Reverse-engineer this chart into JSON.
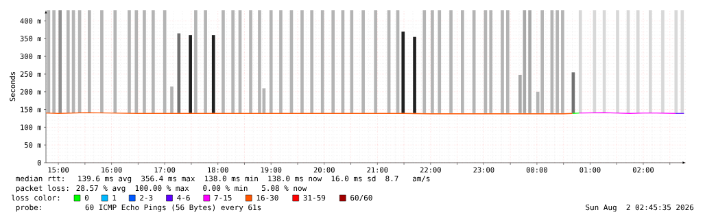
{
  "chart_data": {
    "type": "line",
    "ylabel": "Seconds",
    "xlim": [
      "2026-08-01T14:46",
      "2026-08-02T02:48"
    ],
    "ylim": [
      0,
      430
    ],
    "xticks": [
      {
        "value": "2026-08-01T15:00",
        "label": "15:00"
      },
      {
        "value": "2026-08-01T15:30",
        "label": null
      },
      {
        "value": "2026-08-01T16:00",
        "label": "16:00"
      },
      {
        "value": "2026-08-01T16:30",
        "label": null
      },
      {
        "value": "2026-08-01T17:00",
        "label": "17:00"
      },
      {
        "value": "2026-08-01T17:30",
        "label": null
      },
      {
        "value": "2026-08-01T18:00",
        "label": "18:00"
      },
      {
        "value": "2026-08-01T18:30",
        "label": null
      },
      {
        "value": "2026-08-01T19:00",
        "label": "19:00"
      },
      {
        "value": "2026-08-01T19:30",
        "label": null
      },
      {
        "value": "2026-08-01T20:00",
        "label": "20:00"
      },
      {
        "value": "2026-08-01T20:30",
        "label": null
      },
      {
        "value": "2026-08-01T21:00",
        "label": "21:00"
      },
      {
        "value": "2026-08-01T21:30",
        "label": null
      },
      {
        "value": "2026-08-01T22:00",
        "label": "22:00"
      },
      {
        "value": "2026-08-01T22:30",
        "label": null
      },
      {
        "value": "2026-08-01T23:00",
        "label": "23:00"
      },
      {
        "value": "2026-08-01T23:30",
        "label": null
      },
      {
        "value": "2026-08-02T00:00",
        "label": "00:00"
      },
      {
        "value": "2026-08-02T00:30",
        "label": null
      },
      {
        "value": "2026-08-02T01:00",
        "label": "01:00"
      },
      {
        "value": "2026-08-02T01:30",
        "label": null
      },
      {
        "value": "2026-08-02T02:00",
        "label": "02:00"
      },
      {
        "value": "2026-08-02T02:30",
        "label": null
      }
    ],
    "yticks": [
      0,
      {
        "value": 50,
        "label": "50 m"
      },
      {
        "value": 100,
        "label": "100 m"
      },
      {
        "value": 150,
        "label": "150 m"
      },
      {
        "value": 200,
        "label": "200 m"
      },
      {
        "value": 250,
        "label": "250 m"
      },
      {
        "value": 300,
        "label": "300 m"
      },
      {
        "value": 350,
        "label": "350 m"
      },
      {
        "value": 400,
        "label": "400 m"
      }
    ],
    "grid": true,
    "legend": "bottom",
    "legend_title": "loss color:",
    "series": [
      {
        "type": "bar",
        "x": [
          "2026-08-01T14:49",
          "2026-08-01T14:55",
          "2026-08-01T15:02",
          "2026-08-01T15:11",
          "2026-08-01T15:17",
          "2026-08-01T15:24",
          "2026-08-01T15:35",
          "2026-08-01T15:49",
          "2026-08-01T16:04",
          "2026-08-01T16:20",
          "2026-08-01T16:28",
          "2026-08-01T16:37",
          "2026-08-01T16:47",
          "2026-08-01T17:00",
          "2026-08-01T17:08",
          "2026-08-01T17:16",
          "2026-08-01T17:29",
          "2026-08-01T17:35",
          "2026-08-01T17:46",
          "2026-08-01T17:55",
          "2026-08-01T18:06",
          "2026-08-01T18:17",
          "2026-08-01T18:25",
          "2026-08-01T18:37",
          "2026-08-01T18:47",
          "2026-08-01T18:52",
          "2026-08-01T19:00",
          "2026-08-01T19:11",
          "2026-08-01T19:23",
          "2026-08-01T19:35",
          "2026-08-01T19:46",
          "2026-08-01T19:58",
          "2026-08-01T20:10",
          "2026-08-01T20:21",
          "2026-08-01T20:31",
          "2026-08-01T20:44",
          "2026-08-01T20:58",
          "2026-08-01T21:13",
          "2026-08-01T21:23",
          "2026-08-01T21:29",
          "2026-08-01T21:42",
          "2026-08-01T21:53",
          "2026-08-01T22:02",
          "2026-08-01T22:10",
          "2026-08-01T22:23",
          "2026-08-01T22:36",
          "2026-08-01T22:49",
          "2026-08-01T23:02",
          "2026-08-01T23:08",
          "2026-08-01T23:21",
          "2026-08-01T23:27",
          "2026-08-01T23:41",
          "2026-08-01T23:46",
          "2026-08-01T23:52",
          "2026-08-02T00:01",
          "2026-08-02T00:06",
          "2026-08-02T00:17",
          "2026-08-02T00:23",
          "2026-08-02T00:29",
          "2026-08-02T00:41",
          "2026-08-02T00:49",
          "2026-08-02T01:05",
          "2026-08-02T01:16",
          "2026-08-02T01:31",
          "2026-08-02T01:43",
          "2026-08-02T01:54",
          "2026-08-02T02:08",
          "2026-08-02T02:22",
          "2026-08-02T02:37",
          "2026-08-02T02:44"
        ],
        "base": [
          140,
          140,
          140,
          140,
          140,
          140,
          140,
          140,
          140,
          140,
          140,
          140,
          140,
          140,
          140,
          140,
          140,
          140,
          140,
          140,
          140,
          140,
          140,
          140,
          140,
          140,
          140,
          140,
          140,
          140,
          140,
          140,
          140,
          140,
          140,
          140,
          140,
          140,
          140,
          140,
          140,
          140,
          140,
          140,
          140,
          140,
          140,
          140,
          140,
          140,
          140,
          140,
          140,
          140,
          140,
          140,
          140,
          140,
          140,
          140,
          140,
          140,
          140,
          140,
          140,
          140,
          140,
          140,
          140,
          140
        ],
        "values": [
          290,
          290,
          290,
          290,
          290,
          290,
          290,
          290,
          290,
          290,
          290,
          290,
          290,
          290,
          75,
          225,
          220,
          290,
          290,
          220,
          290,
          290,
          290,
          290,
          290,
          70,
          290,
          290,
          290,
          290,
          290,
          290,
          290,
          290,
          290,
          290,
          290,
          290,
          290,
          230,
          215,
          290,
          290,
          290,
          290,
          290,
          290,
          290,
          290,
          290,
          290,
          108,
          290,
          290,
          60,
          290,
          290,
          290,
          290,
          115,
          290,
          290,
          290,
          290,
          290,
          290,
          290,
          290,
          290,
          290
        ],
        "colors": [
          "#b4b4b4",
          "#b4b4b4",
          "#909090",
          "#b4b4b4",
          "#b4b4b4",
          "#b4b4b4",
          "#b4b4b4",
          "#b4b4b4",
          "#b4b4b4",
          "#b4b4b4",
          "#b4b4b4",
          "#b4b4b4",
          "#b4b4b4",
          "#b4b4b4",
          "#b4b4b4",
          "#707070",
          "#202020",
          "#b4b4b4",
          "#b4b4b4",
          "#202020",
          "#b4b4b4",
          "#b4b4b4",
          "#b4b4b4",
          "#b4b4b4",
          "#b4b4b4",
          "#b4b4b4",
          "#b4b4b4",
          "#b4b4b4",
          "#b4b4b4",
          "#b4b4b4",
          "#b4b4b4",
          "#b4b4b4",
          "#b4b4b4",
          "#b4b4b4",
          "#b4b4b4",
          "#b4b4b4",
          "#b4b4b4",
          "#b4b4b4",
          "#b4b4b4",
          "#202020",
          "#202020",
          "#b4b4b4",
          "#b4b4b4",
          "#b4b4b4",
          "#b4b4b4",
          "#b4b4b4",
          "#b4b4b4",
          "#b4b4b4",
          "#b4b4b4",
          "#b4b4b4",
          "#b4b4b4",
          "#a8a8a8",
          "#a8a8a8",
          "#a8a8a8",
          "#b4b4b4",
          "#b4b4b4",
          "#b4b4b4",
          "#b4b4b4",
          "#b4b4b4",
          "#707070",
          "#d8d8d8",
          "#d8d8d8",
          "#d8d8d8",
          "#d8d8d8",
          "#d8d8d8",
          "#d8d8d8",
          "#d8d8d8",
          "#d8d8d8",
          "#d8d8d8",
          "#d8d8d8"
        ]
      },
      {
        "name": "0",
        "color": "#00ff00",
        "x": [
          "2026-08-02T00:40",
          "2026-08-02T00:48"
        ],
        "values": [
          139,
          140
        ]
      },
      {
        "name": "1",
        "color": "#00b8ff"
      },
      {
        "name": "2-3",
        "color": "#0059ff"
      },
      {
        "name": "4-6",
        "color": "#5e00ff",
        "x": [
          "2026-08-02T02:36",
          "2026-08-02T02:46"
        ],
        "values": [
          139,
          139
        ]
      },
      {
        "name": "7-15",
        "color": "#ff00ff",
        "x": [
          "2026-08-02T00:48",
          "2026-08-02T01:15",
          "2026-08-02T01:30",
          "2026-08-02T01:45",
          "2026-08-02T02:00",
          "2026-08-02T02:15",
          "2026-08-02T02:36"
        ],
        "values": [
          140,
          141,
          140,
          139,
          140,
          140,
          139
        ]
      },
      {
        "name": "16-30",
        "color": "#ff5500",
        "x": [
          "2026-08-01T14:46",
          "2026-08-01T15:00",
          "2026-08-01T15:30",
          "2026-08-01T16:00",
          "2026-08-01T16:30",
          "2026-08-01T17:00",
          "2026-08-01T17:30",
          "2026-08-01T18:00",
          "2026-08-01T18:30",
          "2026-08-01T19:00",
          "2026-08-01T19:30",
          "2026-08-01T20:00",
          "2026-08-01T20:30",
          "2026-08-01T21:00",
          "2026-08-01T21:30",
          "2026-08-01T22:00",
          "2026-08-01T22:30",
          "2026-08-01T23:00",
          "2026-08-01T23:30",
          "2026-08-02T00:00",
          "2026-08-02T00:30",
          "2026-08-02T00:40"
        ],
        "values": [
          140,
          139,
          141,
          140,
          139,
          139,
          139,
          139,
          139,
          139,
          139,
          139,
          139,
          139,
          139,
          138,
          138,
          138,
          138,
          138,
          138,
          139
        ]
      },
      {
        "name": "31-59",
        "color": "#ff0000"
      },
      {
        "name": "60/60",
        "color": "#a10000"
      }
    ],
    "annotations": [
      "median rtt:  139.6 ms avg  356.4 ms max  138.0 ms min  138.0 ms now  16.0 ms sd  8.7   am/s",
      "packet loss: 28.57 % avg  100.00 % max   0.00 % min   5.08 % now",
      "probe:       60 ICMP Echo Pings (56 Bytes) every 61s",
      "Sun Aug  2 02:45:35 2026"
    ]
  }
}
